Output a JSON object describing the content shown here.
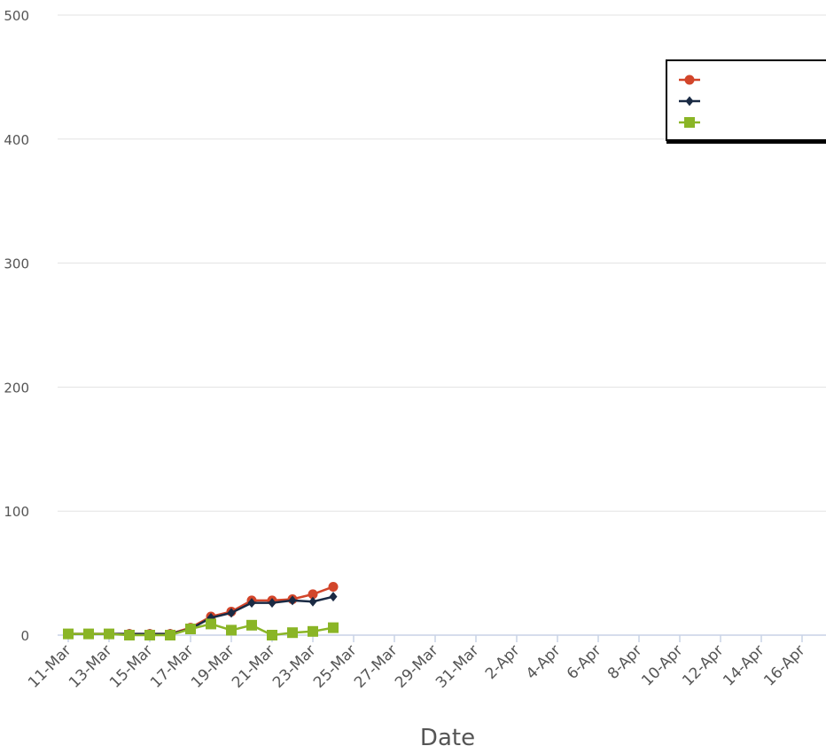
{
  "chart_data": {
    "type": "line",
    "x_label": "Date",
    "categories": [
      "11-Mar",
      null,
      "13-Mar",
      null,
      "15-Mar",
      null,
      "17-Mar",
      null,
      "19-Mar",
      null,
      "21-Mar",
      null,
      "23-Mar",
      null,
      "25-Mar",
      null,
      "27-Mar",
      null,
      "29-Mar",
      null,
      "31-Mar",
      null,
      "2-Apr",
      null,
      "4-Apr",
      null,
      "6-Apr",
      null,
      "8-Apr",
      null,
      "10-Apr",
      null,
      "12-Apr",
      null,
      "14-Apr",
      null,
      "16-Apr",
      null
    ],
    "series": [
      {
        "color": "#d2452a",
        "marker": "circle",
        "values": [
          1,
          1,
          1,
          1,
          1,
          1,
          6,
          15,
          19,
          28,
          28,
          29,
          33,
          39,
          null,
          null,
          null,
          null,
          null,
          null,
          null,
          null,
          null,
          null,
          null,
          null,
          null,
          null,
          null,
          null,
          null,
          null,
          null,
          null,
          null,
          null,
          null,
          null
        ]
      },
      {
        "color": "#1a2a44",
        "marker": "diamond",
        "values": [
          1,
          1,
          1,
          1,
          1,
          1,
          5,
          14,
          18,
          26,
          26,
          28,
          27,
          31,
          null,
          null,
          null,
          null,
          null,
          null,
          null,
          null,
          null,
          null,
          null,
          null,
          null,
          null,
          null,
          null,
          null,
          null,
          null,
          null,
          null,
          null,
          null,
          null
        ]
      },
      {
        "color": "#8ab526",
        "marker": "square",
        "values": [
          1,
          1,
          1,
          0,
          0,
          0,
          5,
          9,
          4,
          8,
          0,
          2,
          3,
          6,
          null,
          null,
          null,
          null,
          null,
          null,
          null,
          null,
          null,
          null,
          null,
          null,
          null,
          null,
          null,
          null,
          null,
          null,
          null,
          null,
          null,
          null,
          null,
          null
        ]
      }
    ],
    "ylim": [
      0,
      500
    ],
    "yticks": [
      0,
      100,
      200,
      300,
      400,
      500
    ],
    "grid": true,
    "legend": "top-right"
  }
}
